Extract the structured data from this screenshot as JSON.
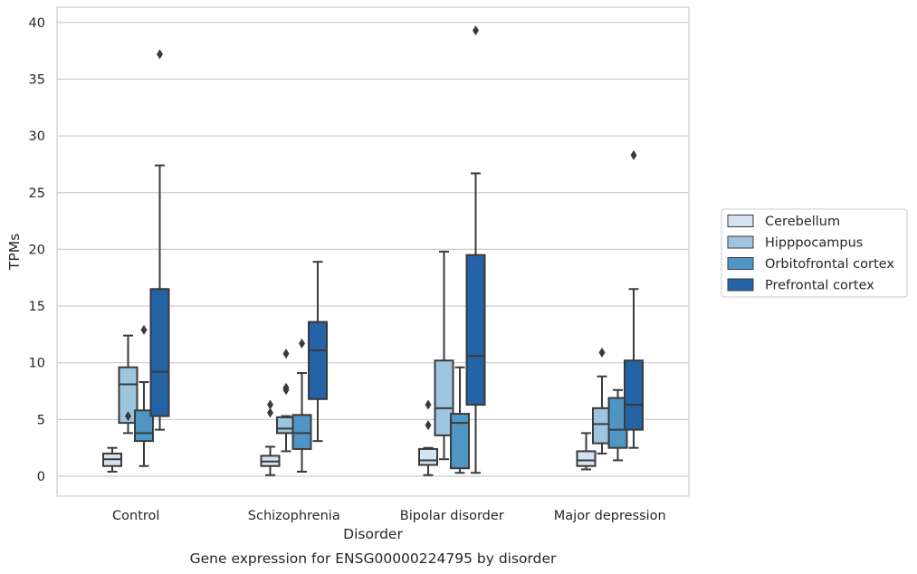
{
  "chart_data": {
    "type": "box",
    "xlabel": "Disorder",
    "ylabel": "TPMs",
    "caption": "Gene expression for ENSG00000224795 by disorder",
    "ylim": [
      -1.7,
      41.3
    ],
    "yticks": [
      0,
      5,
      10,
      15,
      20,
      25,
      30,
      35,
      40
    ],
    "grid": "horizontal",
    "legend_position": "right",
    "categories": [
      "Control",
      "Schizophrenia",
      "Bipolar disorder",
      "Major depression"
    ],
    "series": [
      {
        "name": "Cerebellum",
        "color": "#d3e3f2",
        "boxes": [
          {
            "whislo": 0.4,
            "q1": 0.9,
            "med": 1.5,
            "q3": 2.0,
            "whishi": 2.5,
            "fliers": []
          },
          {
            "whislo": 0.1,
            "q1": 0.9,
            "med": 1.3,
            "q3": 1.8,
            "whishi": 2.6,
            "fliers": [
              5.6,
              6.3
            ]
          },
          {
            "whislo": 0.1,
            "q1": 1.0,
            "med": 1.4,
            "q3": 2.4,
            "whishi": 2.5,
            "fliers": [
              4.5,
              6.3
            ]
          },
          {
            "whislo": 0.6,
            "q1": 0.9,
            "med": 1.4,
            "q3": 2.2,
            "whishi": 3.8,
            "fliers": []
          }
        ]
      },
      {
        "name": "Hipppocampus",
        "color": "#9dc5df",
        "boxes": [
          {
            "whislo": 3.8,
            "q1": 4.7,
            "med": 8.1,
            "q3": 9.6,
            "whishi": 12.4,
            "fliers": [
              5.3
            ]
          },
          {
            "whislo": 2.2,
            "q1": 3.8,
            "med": 4.2,
            "q3": 5.2,
            "whishi": 5.3,
            "fliers": [
              7.6,
              7.8,
              10.8
            ]
          },
          {
            "whislo": 1.5,
            "q1": 3.6,
            "med": 6.0,
            "q3": 10.2,
            "whishi": 19.8,
            "fliers": []
          },
          {
            "whislo": 2.0,
            "q1": 2.9,
            "med": 4.6,
            "q3": 6.0,
            "whishi": 8.8,
            "fliers": [
              10.9
            ]
          }
        ]
      },
      {
        "name": "Orbitofrontal cortex",
        "color": "#5096c4",
        "boxes": [
          {
            "whislo": 0.9,
            "q1": 3.1,
            "med": 3.8,
            "q3": 5.8,
            "whishi": 8.3,
            "fliers": [
              12.9
            ]
          },
          {
            "whislo": 0.4,
            "q1": 2.4,
            "med": 3.8,
            "q3": 5.4,
            "whishi": 9.1,
            "fliers": [
              11.7
            ]
          },
          {
            "whislo": 0.3,
            "q1": 0.7,
            "med": 4.7,
            "q3": 5.5,
            "whishi": 9.6,
            "fliers": []
          },
          {
            "whislo": 1.4,
            "q1": 2.5,
            "med": 4.1,
            "q3": 6.9,
            "whishi": 7.6,
            "fliers": []
          }
        ]
      },
      {
        "name": "Prefrontal cortex",
        "color": "#2363a6",
        "boxes": [
          {
            "whislo": 4.1,
            "q1": 5.3,
            "med": 9.2,
            "q3": 16.5,
            "whishi": 27.4,
            "fliers": [
              37.2
            ]
          },
          {
            "whislo": 3.1,
            "q1": 6.8,
            "med": 11.1,
            "q3": 13.6,
            "whishi": 18.9,
            "fliers": []
          },
          {
            "whislo": 0.3,
            "q1": 6.3,
            "med": 10.6,
            "q3": 19.5,
            "whishi": 26.7,
            "fliers": [
              39.3
            ]
          },
          {
            "whislo": 2.5,
            "q1": 4.1,
            "med": 6.3,
            "q3": 10.2,
            "whishi": 16.5,
            "fliers": [
              28.3
            ]
          }
        ]
      }
    ]
  }
}
